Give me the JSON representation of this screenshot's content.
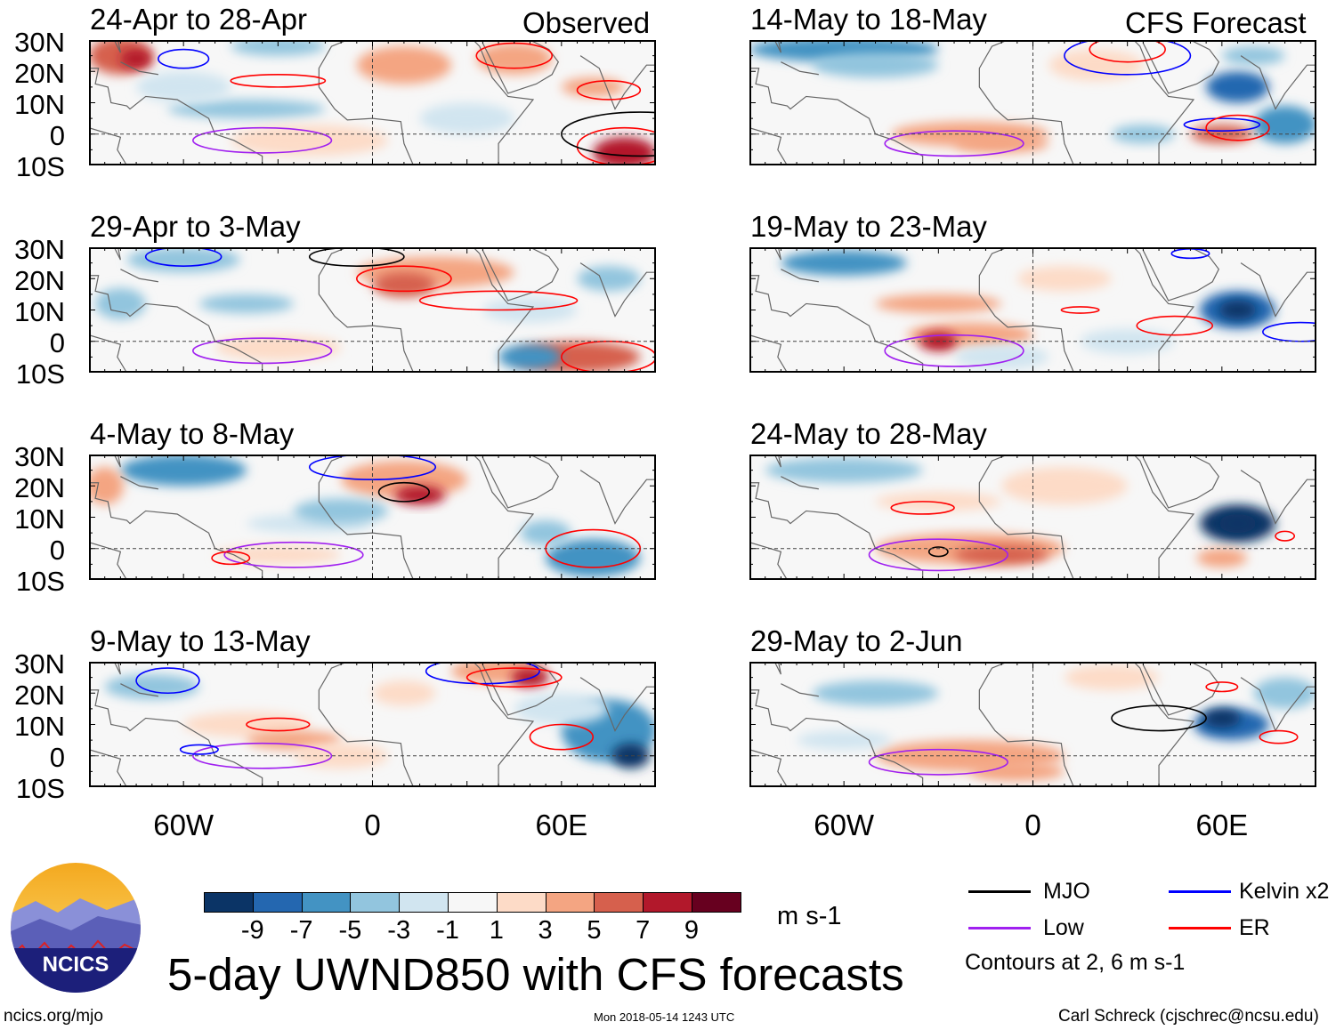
{
  "headings": {
    "observed": "Observed",
    "forecast": "CFS Forecast"
  },
  "panels": [
    {
      "title": "24-Apr to 28-Apr",
      "group": "observed"
    },
    {
      "title": "29-Apr to 3-May",
      "group": "observed"
    },
    {
      "title": "4-May to 8-May",
      "group": "observed"
    },
    {
      "title": "9-May to 13-May",
      "group": "observed"
    },
    {
      "title": "14-May to 18-May",
      "group": "forecast"
    },
    {
      "title": "19-May to 23-May",
      "group": "forecast"
    },
    {
      "title": "24-May to 28-May",
      "group": "forecast"
    },
    {
      "title": "29-May to 2-Jun",
      "group": "forecast"
    }
  ],
  "lat_labels": [
    "30N",
    "20N",
    "10N",
    "0",
    "10S"
  ],
  "lon_labels": [
    "60W",
    "0",
    "60E"
  ],
  "colorbar": {
    "labels": [
      "-9",
      "-7",
      "-5",
      "-3",
      "-1",
      "1",
      "3",
      "5",
      "7",
      "9"
    ],
    "colors": [
      "#0b3466",
      "#2467b0",
      "#4393c3",
      "#92c5de",
      "#d1e5f0",
      "#f7f7f7",
      "#fddbc7",
      "#f4a582",
      "#d6604d",
      "#b2182b",
      "#67001f"
    ],
    "units": "m s-1"
  },
  "legend": {
    "items": [
      {
        "label": "MJO",
        "color": "#000000"
      },
      {
        "label": "Kelvin x2",
        "color": "#0000ff"
      },
      {
        "label": "Low",
        "color": "#a020f0"
      },
      {
        "label": "ER",
        "color": "#ff0000"
      }
    ],
    "note": "Contours at 2, 6 m s-1"
  },
  "title": "5-day UWND850 with CFS forecasts",
  "logo_text": "NCICS",
  "footer": {
    "left": "ncics.org/mjo",
    "center": "Mon 2018-05-14 1243 UTC",
    "right": "Carl Schreck (cjschrec@ncsu.edu)"
  }
}
